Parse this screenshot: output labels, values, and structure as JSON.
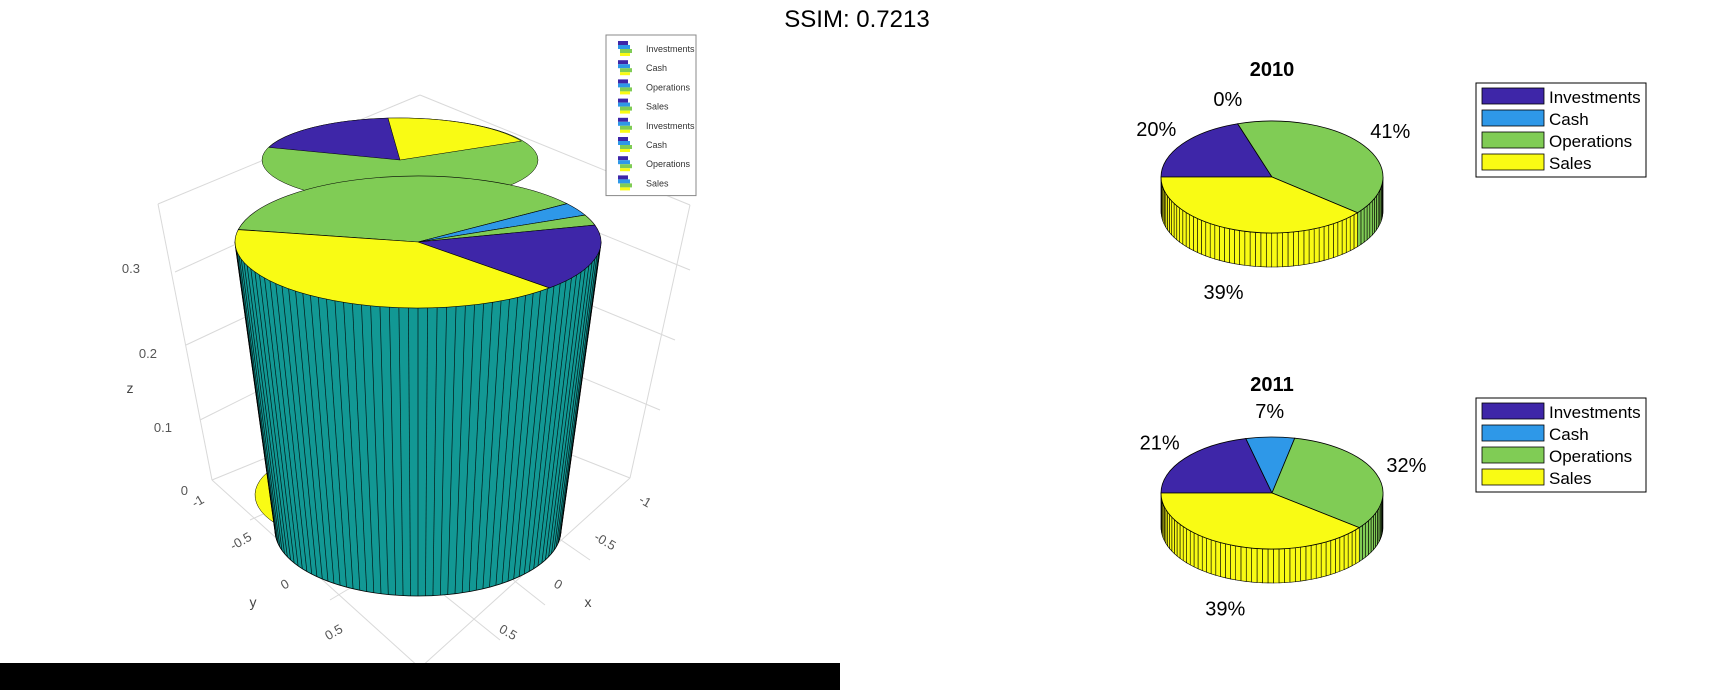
{
  "ssim_label": "SSIM: 0.7213",
  "colors": {
    "investments": "#3e26a8",
    "cash": "#2e98e8",
    "operations": "#80cc55",
    "sales": "#f9fb14",
    "cylinder": "#129894",
    "edge": "#000000"
  },
  "chart_data": [
    {
      "type": "pie",
      "variant": "3d-cylinder-surface",
      "title": "",
      "categories": [
        "Investments",
        "Cash",
        "Operations",
        "Sales",
        "Investments",
        "Cash",
        "Operations",
        "Sales"
      ],
      "legend": {
        "entries": [
          "Investments",
          "Cash",
          "Operations",
          "Sales",
          "Investments",
          "Cash",
          "Operations",
          "Sales"
        ],
        "position": "top-right"
      },
      "axes": {
        "xlabel": "x",
        "ylabel": "y",
        "zlabel": "z",
        "x_ticks": [
          "-1",
          "-0.5",
          "0",
          "0.5"
        ],
        "y_ticks": [
          "-1",
          "-0.5",
          "0",
          "0.5"
        ],
        "z_ticks": [
          "0",
          "0.1",
          "0.2",
          "0.3"
        ],
        "zlim": [
          0,
          0.35
        ],
        "grid": true
      }
    },
    {
      "type": "pie",
      "variant": "3d",
      "title": "2010",
      "categories": [
        "Investments",
        "Cash",
        "Operations",
        "Sales"
      ],
      "values": [
        20,
        0,
        41,
        39
      ],
      "labels": [
        "20%",
        "0%",
        "41%",
        "39%"
      ],
      "legend": {
        "entries": [
          "Investments",
          "Cash",
          "Operations",
          "Sales"
        ],
        "position": "right"
      }
    },
    {
      "type": "pie",
      "variant": "3d",
      "title": "2011",
      "categories": [
        "Investments",
        "Cash",
        "Operations",
        "Sales"
      ],
      "values": [
        21,
        7,
        32,
        39
      ],
      "labels": [
        "21%",
        "7%",
        "32%",
        "39%"
      ],
      "legend": {
        "entries": [
          "Investments",
          "Cash",
          "Operations",
          "Sales"
        ],
        "position": "right"
      }
    }
  ]
}
